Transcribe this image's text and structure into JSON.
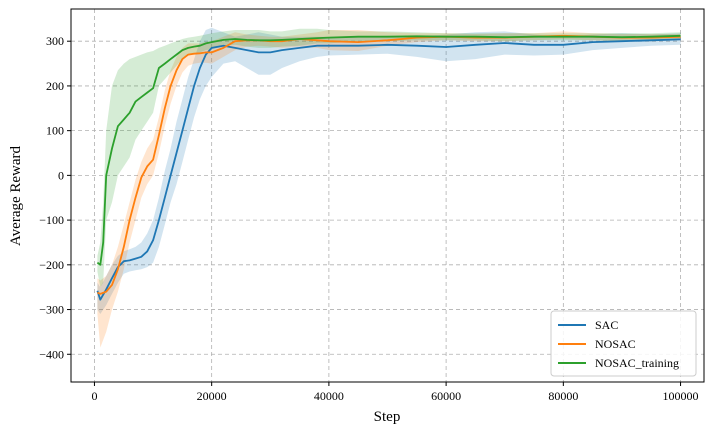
{
  "chart_data": {
    "type": "line",
    "title": "",
    "xlabel": "Step",
    "ylabel": "Average Reward",
    "xlim": [
      -4000,
      104000
    ],
    "ylim": [
      -462,
      372
    ],
    "xticks": [
      0,
      20000,
      40000,
      60000,
      80000,
      100000
    ],
    "xtick_labels": [
      "0",
      "20000",
      "40000",
      "60000",
      "80000",
      "100000"
    ],
    "yticks": [
      -400,
      -300,
      -200,
      -100,
      0,
      100,
      200,
      300
    ],
    "ytick_labels": [
      "−400",
      "−300",
      "−200",
      "−100",
      "0",
      "100",
      "200",
      "300"
    ],
    "grid": true,
    "legend_position": "lower-right",
    "series": [
      {
        "name": "SAC",
        "color": "#1f77b4",
        "x": [
          500,
          1000,
          2000,
          3000,
          4000,
          5000,
          6000,
          7000,
          8000,
          9000,
          10000,
          11000,
          12000,
          13000,
          14000,
          15000,
          16000,
          17000,
          18000,
          19000,
          20000,
          22000,
          24000,
          26000,
          28000,
          30000,
          32000,
          35000,
          38000,
          40000,
          45000,
          50000,
          55000,
          60000,
          65000,
          70000,
          75000,
          80000,
          85000,
          90000,
          95000,
          100000
        ],
        "y": [
          -258,
          -278,
          -255,
          -230,
          -205,
          -192,
          -190,
          -186,
          -182,
          -170,
          -145,
          -100,
          -50,
          0,
          50,
          100,
          150,
          200,
          240,
          270,
          285,
          290,
          285,
          280,
          275,
          275,
          280,
          285,
          290,
          290,
          290,
          292,
          290,
          287,
          292,
          296,
          292,
          292,
          298,
          300,
          302,
          304
        ],
        "upper": [
          -240,
          -250,
          -225,
          -200,
          -180,
          -170,
          -165,
          -160,
          -150,
          -130,
          -100,
          -50,
          10,
          60,
          120,
          170,
          220,
          260,
          300,
          325,
          330,
          320,
          310,
          315,
          320,
          315,
          310,
          310,
          310,
          310,
          310,
          312,
          310,
          315,
          320,
          322,
          315,
          310,
          315,
          318,
          315,
          318
        ],
        "lower": [
          -300,
          -310,
          -290,
          -265,
          -240,
          -220,
          -215,
          -212,
          -210,
          -205,
          -195,
          -160,
          -110,
          -60,
          -20,
          30,
          80,
          130,
          170,
          200,
          220,
          250,
          255,
          240,
          225,
          225,
          240,
          255,
          265,
          268,
          270,
          272,
          265,
          255,
          260,
          270,
          268,
          270,
          280,
          285,
          290,
          292
        ]
      },
      {
        "name": "NOSAC",
        "color": "#ff7f0e",
        "x": [
          500,
          1000,
          2000,
          3000,
          4000,
          5000,
          6000,
          7000,
          8000,
          9000,
          10000,
          11000,
          12000,
          13000,
          14000,
          15000,
          16000,
          17000,
          18000,
          19000,
          20000,
          22000,
          24000,
          26000,
          28000,
          30000,
          32000,
          35000,
          38000,
          40000,
          45000,
          50000,
          55000,
          60000,
          65000,
          70000,
          75000,
          80000,
          85000,
          90000,
          95000,
          100000
        ],
        "y": [
          -262,
          -265,
          -260,
          -245,
          -210,
          -160,
          -100,
          -50,
          -5,
          20,
          35,
          90,
          150,
          200,
          235,
          260,
          270,
          272,
          273,
          275,
          275,
          285,
          300,
          302,
          302,
          300,
          300,
          305,
          302,
          300,
          298,
          302,
          308,
          310,
          308,
          308,
          310,
          312,
          310,
          308,
          308,
          310
        ],
        "upper": [
          -230,
          -235,
          -225,
          -200,
          -160,
          -110,
          -60,
          -10,
          30,
          60,
          80,
          130,
          190,
          235,
          265,
          285,
          295,
          295,
          295,
          298,
          300,
          310,
          320,
          315,
          312,
          310,
          310,
          315,
          320,
          325,
          325,
          320,
          318,
          318,
          316,
          318,
          318,
          322,
          318,
          316,
          316,
          316
        ],
        "lower": [
          -310,
          -385,
          -350,
          -300,
          -260,
          -210,
          -150,
          -100,
          -50,
          -20,
          0,
          50,
          110,
          160,
          200,
          230,
          245,
          250,
          252,
          252,
          250,
          265,
          280,
          288,
          290,
          288,
          285,
          288,
          285,
          280,
          278,
          290,
          298,
          302,
          300,
          300,
          302,
          305,
          302,
          300,
          300,
          302
        ]
      },
      {
        "name": "NOSAC_training",
        "color": "#2ca02c",
        "x": [
          500,
          1000,
          1500,
          2000,
          3000,
          4000,
          5000,
          6000,
          7000,
          8000,
          9000,
          10000,
          11000,
          12000,
          13000,
          14000,
          15000,
          16000,
          17000,
          18000,
          19000,
          20000,
          22000,
          24000,
          26000,
          28000,
          30000,
          32000,
          35000,
          38000,
          40000,
          45000,
          50000,
          55000,
          60000,
          65000,
          70000,
          75000,
          80000,
          85000,
          90000,
          95000,
          100000
        ],
        "y": [
          -195,
          -200,
          -150,
          0,
          60,
          110,
          125,
          140,
          165,
          175,
          185,
          195,
          240,
          250,
          260,
          270,
          280,
          285,
          288,
          290,
          295,
          298,
          303,
          305,
          303,
          302,
          302,
          303,
          305,
          307,
          308,
          310,
          310,
          311,
          310,
          310,
          309,
          310,
          310,
          310,
          309,
          310,
          312
        ],
        "upper": [
          -180,
          -150,
          -60,
          100,
          200,
          235,
          250,
          260,
          265,
          270,
          275,
          278,
          285,
          290,
          295,
          300,
          305,
          308,
          310,
          312,
          315,
          318,
          322,
          325,
          325,
          325,
          322,
          322,
          328,
          328,
          325,
          322,
          322,
          320,
          318,
          318,
          318,
          318,
          318,
          318,
          318,
          318,
          320
        ],
        "lower": [
          -215,
          -250,
          -240,
          -100,
          -60,
          0,
          20,
          40,
          80,
          100,
          120,
          140,
          200,
          215,
          230,
          245,
          260,
          268,
          272,
          275,
          280,
          282,
          290,
          292,
          288,
          285,
          285,
          288,
          290,
          295,
          295,
          300,
          300,
          302,
          302,
          302,
          300,
          302,
          302,
          302,
          300,
          302,
          304
        ]
      }
    ]
  }
}
